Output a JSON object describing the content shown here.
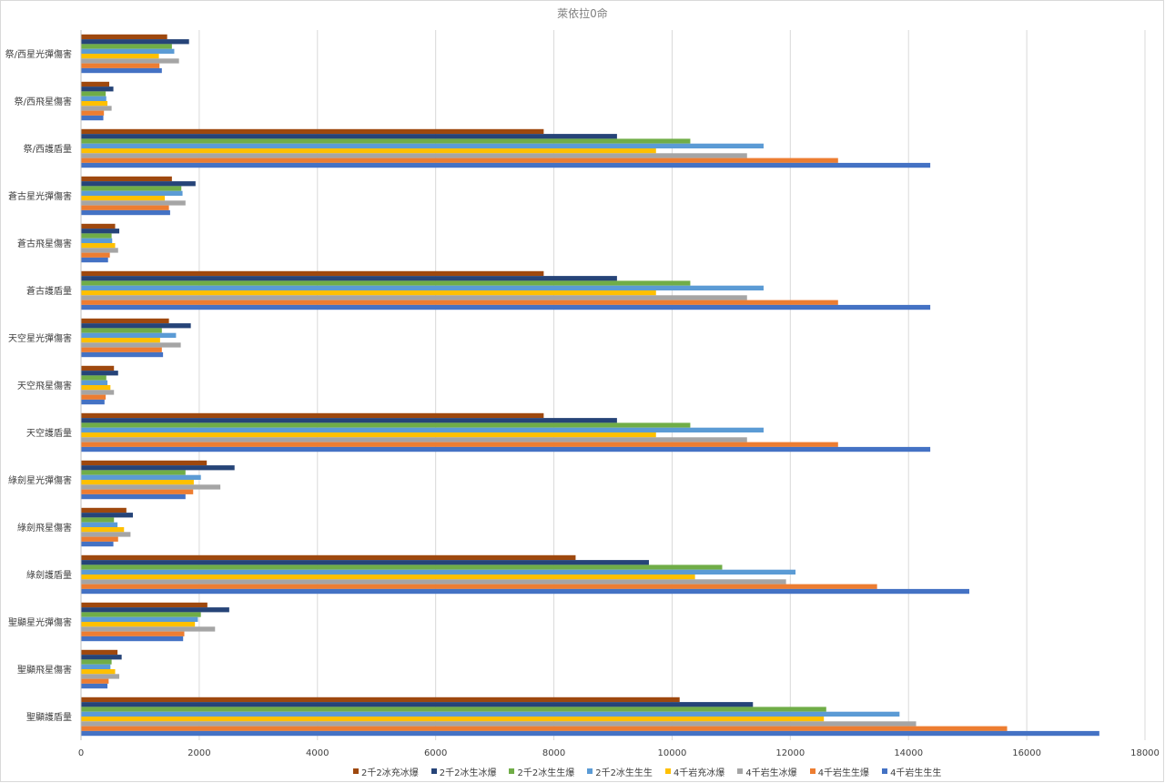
{
  "chart_data": {
    "type": "bar",
    "orientation": "horizontal",
    "title": "萊依拉0命",
    "categories": [
      "祭/西星光彈傷害",
      "祭/西飛星傷害",
      "祭/西護盾量",
      "蒼古星光彈傷害",
      "蒼古飛星傷害",
      "蒼古護盾量",
      "天空星光彈傷害",
      "天空飛星傷害",
      "天空護盾量",
      "綠劍星光彈傷害",
      "綠劍飛星傷害",
      "綠劍護盾量",
      "聖顯星光彈傷害",
      "聖顯飛星傷害",
      "聖顯護盾量"
    ],
    "xlim": [
      0,
      18000
    ],
    "xticks": [
      0,
      2000,
      4000,
      6000,
      8000,
      10000,
      12000,
      14000,
      16000,
      18000
    ],
    "grid": true,
    "legend_position": "bottom",
    "series": [
      {
        "name": "2千2冰充冰爆",
        "color": "#9e480e",
        "values": [
          1450,
          470,
          7820,
          1530,
          570,
          7820,
          1480,
          550,
          7820,
          2120,
          760,
          8360,
          2130,
          610,
          10120
        ]
      },
      {
        "name": "2千2冰生冰爆",
        "color": "#264478",
        "values": [
          1820,
          540,
          9060,
          1930,
          640,
          9060,
          1850,
          620,
          9060,
          2590,
          870,
          9600,
          2500,
          680,
          11360
        ]
      },
      {
        "name": "2千2冰生生爆",
        "color": "#70ad47",
        "values": [
          1530,
          410,
          10300,
          1690,
          510,
          10300,
          1360,
          420,
          10300,
          1760,
          550,
          10840,
          2020,
          510,
          12600
        ]
      },
      {
        "name": "2千2冰生生生",
        "color": "#5b9bd5",
        "values": [
          1570,
          420,
          11540,
          1710,
          520,
          11540,
          1600,
          440,
          11540,
          2020,
          610,
          12080,
          1970,
          490,
          13840
        ]
      },
      {
        "name": "4千岩充冰爆",
        "color": "#ffc000",
        "values": [
          1310,
          440,
          9720,
          1410,
          570,
          9720,
          1330,
          490,
          9720,
          1900,
          720,
          10380,
          1920,
          570,
          12560
        ]
      },
      {
        "name": "4千岩生冰爆",
        "color": "#a5a5a5",
        "values": [
          1650,
          510,
          11260,
          1760,
          620,
          11260,
          1680,
          550,
          11260,
          2350,
          830,
          11920,
          2260,
          640,
          14120
        ]
      },
      {
        "name": "4千岩生生爆",
        "color": "#ed7d31",
        "values": [
          1320,
          380,
          12800,
          1480,
          480,
          12800,
          1360,
          410,
          12800,
          1890,
          620,
          13460,
          1740,
          460,
          15660
        ]
      },
      {
        "name": "4千岩生生生",
        "color": "#4472c4",
        "values": [
          1360,
          370,
          14360,
          1500,
          450,
          14360,
          1380,
          390,
          14360,
          1760,
          540,
          15020,
          1720,
          440,
          17220
        ]
      }
    ]
  }
}
